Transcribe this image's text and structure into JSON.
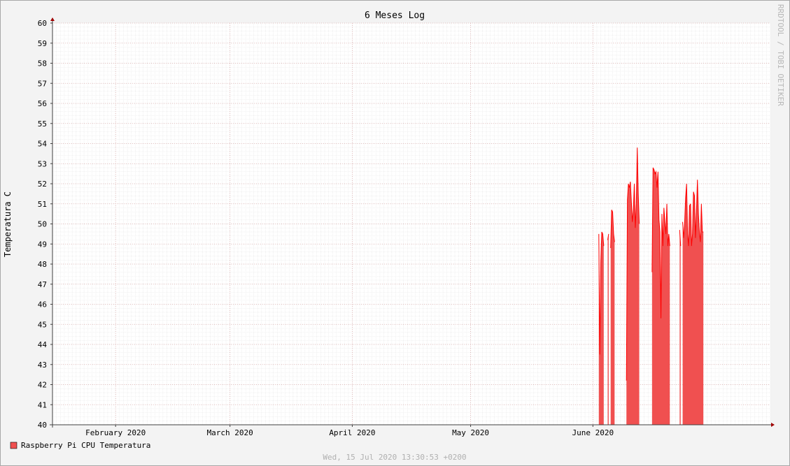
{
  "chart_data": {
    "type": "area",
    "title": "6 Meses Log",
    "ylabel": "Temperatura C",
    "xlabel": "",
    "ylim": [
      40,
      60
    ],
    "y_ticks": [
      40,
      41,
      42,
      43,
      44,
      45,
      46,
      47,
      48,
      49,
      50,
      51,
      52,
      53,
      54,
      55,
      56,
      57,
      58,
      59,
      60
    ],
    "x_start": "2020-01-16",
    "x_end": "2020-07-16",
    "x_ticks": [
      {
        "date": "2020-02-01",
        "label": "February 2020"
      },
      {
        "date": "2020-03-01",
        "label": "March 2020"
      },
      {
        "date": "2020-04-01",
        "label": "April 2020"
      },
      {
        "date": "2020-05-01",
        "label": "May 2020"
      },
      {
        "date": "2020-06-01",
        "label": "June 2020"
      }
    ],
    "grid": true,
    "legend_position": "bottom-left",
    "series": [
      {
        "name": "Raspberry Pi CPU Temperatura",
        "color": "#ff0000",
        "fill": "#f05050",
        "points": [
          {
            "x": "2020-06-02T12:00",
            "y": 49.5
          },
          {
            "x": "2020-06-02T18:00",
            "y": 43.5
          },
          {
            "x": "2020-06-03T00:00",
            "y": 48.1
          },
          {
            "x": "2020-06-03T06:00",
            "y": 49.6
          },
          {
            "x": "2020-06-03T12:00",
            "y": 49.5
          },
          {
            "x": "2020-06-03T18:00",
            "y": 48.9
          },
          {
            "x": "2020-06-04T00:00",
            "y": null
          },
          {
            "x": "2020-06-04T18:00",
            "y": 49.2
          },
          {
            "x": "2020-06-05T00:00",
            "y": 49.5
          },
          {
            "x": "2020-06-05T06:00",
            "y": null
          },
          {
            "x": "2020-06-05T12:00",
            "y": 48.8
          },
          {
            "x": "2020-06-05T18:00",
            "y": 50.7
          },
          {
            "x": "2020-06-06T00:00",
            "y": 50.6
          },
          {
            "x": "2020-06-06T06:00",
            "y": 49.5
          },
          {
            "x": "2020-06-06T12:00",
            "y": 49.1
          },
          {
            "x": "2020-06-06T18:00",
            "y": null
          },
          {
            "x": "2020-06-09T12:00",
            "y": 42.2
          },
          {
            "x": "2020-06-09T18:00",
            "y": 51.2
          },
          {
            "x": "2020-06-10T00:00",
            "y": 52.0
          },
          {
            "x": "2020-06-10T06:00",
            "y": 51.8
          },
          {
            "x": "2020-06-10T12:00",
            "y": 52.1
          },
          {
            "x": "2020-06-10T18:00",
            "y": 51.1
          },
          {
            "x": "2020-06-11T00:00",
            "y": 50.1
          },
          {
            "x": "2020-06-11T06:00",
            "y": 50.7
          },
          {
            "x": "2020-06-11T12:00",
            "y": 52.0
          },
          {
            "x": "2020-06-11T18:00",
            "y": 49.8
          },
          {
            "x": "2020-06-12T00:00",
            "y": 51.0
          },
          {
            "x": "2020-06-12T06:00",
            "y": 53.8
          },
          {
            "x": "2020-06-12T12:00",
            "y": 51.5
          },
          {
            "x": "2020-06-12T18:00",
            "y": 50.0
          },
          {
            "x": "2020-06-13T00:00",
            "y": null
          },
          {
            "x": "2020-06-16T00:00",
            "y": 47.6
          },
          {
            "x": "2020-06-16T06:00",
            "y": 52.8
          },
          {
            "x": "2020-06-16T12:00",
            "y": 52.7
          },
          {
            "x": "2020-06-16T18:00",
            "y": 52.5
          },
          {
            "x": "2020-06-17T00:00",
            "y": 52.6
          },
          {
            "x": "2020-06-17T06:00",
            "y": 51.8
          },
          {
            "x": "2020-06-17T12:00",
            "y": 52.6
          },
          {
            "x": "2020-06-17T18:00",
            "y": 50.2
          },
          {
            "x": "2020-06-18T00:00",
            "y": 49.6
          },
          {
            "x": "2020-06-18T06:00",
            "y": 45.3
          },
          {
            "x": "2020-06-18T12:00",
            "y": 50.5
          },
          {
            "x": "2020-06-18T18:00",
            "y": 48.9
          },
          {
            "x": "2020-06-19T00:00",
            "y": 50.8
          },
          {
            "x": "2020-06-19T06:00",
            "y": 50.1
          },
          {
            "x": "2020-06-19T12:00",
            "y": 49.5
          },
          {
            "x": "2020-06-19T18:00",
            "y": 51.0
          },
          {
            "x": "2020-06-20T00:00",
            "y": 48.9
          },
          {
            "x": "2020-06-20T06:00",
            "y": 49.5
          },
          {
            "x": "2020-06-20T12:00",
            "y": 48.9
          },
          {
            "x": "2020-06-20T18:00",
            "y": null
          },
          {
            "x": "2020-06-23T00:00",
            "y": 49.7
          },
          {
            "x": "2020-06-23T06:00",
            "y": 48.9
          },
          {
            "x": "2020-06-23T12:00",
            "y": null
          },
          {
            "x": "2020-06-23T18:00",
            "y": 50.1
          },
          {
            "x": "2020-06-24T00:00",
            "y": 49.3
          },
          {
            "x": "2020-06-24T06:00",
            "y": 50.0
          },
          {
            "x": "2020-06-24T12:00",
            "y": 51.3
          },
          {
            "x": "2020-06-24T18:00",
            "y": 52.0
          },
          {
            "x": "2020-06-25T00:00",
            "y": 49.5
          },
          {
            "x": "2020-06-25T06:00",
            "y": 48.9
          },
          {
            "x": "2020-06-25T12:00",
            "y": 50.9
          },
          {
            "x": "2020-06-25T18:00",
            "y": 51.0
          },
          {
            "x": "2020-06-26T00:00",
            "y": 48.9
          },
          {
            "x": "2020-06-26T06:00",
            "y": 49.5
          },
          {
            "x": "2020-06-26T12:00",
            "y": 51.6
          },
          {
            "x": "2020-06-26T18:00",
            "y": 51.4
          },
          {
            "x": "2020-06-27T00:00",
            "y": 49.3
          },
          {
            "x": "2020-06-27T06:00",
            "y": 50.6
          },
          {
            "x": "2020-06-27T12:00",
            "y": 52.2
          },
          {
            "x": "2020-06-27T18:00",
            "y": 50.5
          },
          {
            "x": "2020-06-28T00:00",
            "y": 49.6
          },
          {
            "x": "2020-06-28T06:00",
            "y": 49.1
          },
          {
            "x": "2020-06-28T12:00",
            "y": 51.0
          },
          {
            "x": "2020-06-28T18:00",
            "y": 49.6
          },
          {
            "x": "2020-06-29T00:00",
            "y": 49.6
          }
        ]
      }
    ]
  },
  "watermark": "RRDTOOL / TOBI OETIKER",
  "footer": "Wed, 15 Jul 2020 13:30:53 +0200"
}
